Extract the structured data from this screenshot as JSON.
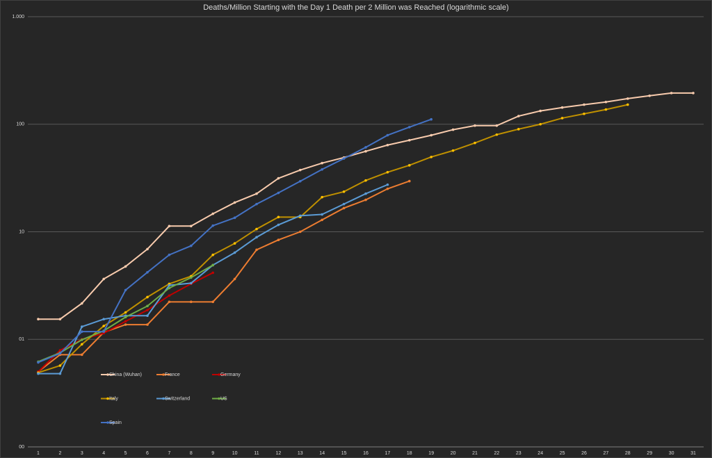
{
  "chart_data": {
    "type": "line",
    "title": "Deaths/Million Starting with the Day 1 Death per 2 Million was Reached (logarithmic scale)",
    "log_scale": true,
    "grid": true,
    "legend": "bottom-left",
    "categories": [
      "1",
      "2",
      "3",
      "4",
      "5",
      "6",
      "7",
      "8",
      "9",
      "10",
      "11",
      "12",
      "13",
      "14",
      "15",
      "16",
      "17",
      "18",
      "19",
      "20",
      "21",
      "22",
      "23",
      "24",
      "25",
      "26",
      "27",
      "28",
      "29",
      "30",
      "31"
    ],
    "ylim": [
      0.1,
      1000
    ],
    "yticks": [
      {
        "value": 1000,
        "label": "1.000"
      },
      100,
      10,
      {
        "value": 1,
        "label": "01"
      },
      {
        "value": 0.1,
        "label": "00"
      }
    ],
    "series": [
      {
        "name": "China (Wuhan)",
        "color": "#f8cbad",
        "marker_color": "#f8cbad",
        "values": [
          1.54,
          1.54,
          2.16,
          3.64,
          4.76,
          6.9,
          11.3,
          11.3,
          14.7,
          18.7,
          22.6,
          31.4,
          37.5,
          43.5,
          49,
          56,
          64,
          71,
          79,
          89,
          97,
          97,
          119,
          133,
          143,
          152,
          161,
          173,
          184,
          195,
          195
        ]
      },
      {
        "name": "France",
        "color": "#ed7d31",
        "marker_color": "#ed7d31",
        "values": [
          0.5,
          0.72,
          0.72,
          1.16,
          1.37,
          1.37,
          2.23,
          2.23,
          2.23,
          3.64,
          6.8,
          8.4,
          10,
          12.9,
          16.6,
          19.8,
          25.1,
          29.6,
          null,
          null,
          null,
          null,
          null,
          null,
          null,
          null,
          null,
          null,
          null,
          null,
          null
        ]
      },
      {
        "name": "Germany",
        "color": "#c00000",
        "marker_color": "#c00000",
        "values": [
          0.5,
          0.79,
          1.0,
          1.14,
          1.47,
          1.87,
          2.55,
          3.28,
          4.16,
          null,
          null,
          null,
          null,
          null,
          null,
          null,
          null,
          null,
          null,
          null,
          null,
          null,
          null,
          null,
          null,
          null,
          null,
          null,
          null,
          null,
          null
        ]
      },
      {
        "name": "Italy",
        "color": "#bf9000",
        "marker_color": "#ffc000",
        "values": [
          0.49,
          0.57,
          0.9,
          1.33,
          1.78,
          2.47,
          3.28,
          3.86,
          6.1,
          7.8,
          10.6,
          13.7,
          13.7,
          21,
          23.6,
          30,
          35.8,
          41.5,
          49.6,
          56.9,
          67,
          80,
          90,
          100,
          114,
          125,
          137,
          152,
          null,
          null,
          null
        ]
      },
      {
        "name": "Switzerland",
        "color": "#5b9bd5",
        "marker_color": "#5b9bd5",
        "values": [
          0.48,
          0.48,
          1.31,
          1.54,
          1.66,
          1.66,
          3.18,
          3.33,
          4.9,
          6.4,
          8.9,
          11.6,
          14.1,
          14.5,
          18.1,
          22.6,
          27.4,
          null,
          null,
          null,
          null,
          null,
          null,
          null,
          null,
          null,
          null,
          null,
          null,
          null,
          null
        ]
      },
      {
        "name": "US",
        "color": "#70ad47",
        "marker_color": "#70ad47",
        "values": [
          0.62,
          0.75,
          0.99,
          1.2,
          1.61,
          2.04,
          3.0,
          3.75,
          4.9,
          null,
          null,
          null,
          null,
          null,
          null,
          null,
          null,
          null,
          null,
          null,
          null,
          null,
          null,
          null,
          null,
          null,
          null,
          null,
          null,
          null,
          null
        ]
      },
      {
        "name": "Spain",
        "color": "#4472c4",
        "marker_color": "#4472c4",
        "values": [
          0.61,
          0.74,
          1.18,
          1.18,
          2.87,
          4.2,
          6.1,
          7.4,
          11.4,
          13.5,
          18.1,
          23,
          29.5,
          38,
          48,
          61,
          79,
          94,
          111,
          null,
          null,
          null,
          null,
          null,
          null,
          null,
          null,
          null,
          null,
          null,
          null
        ]
      }
    ]
  }
}
